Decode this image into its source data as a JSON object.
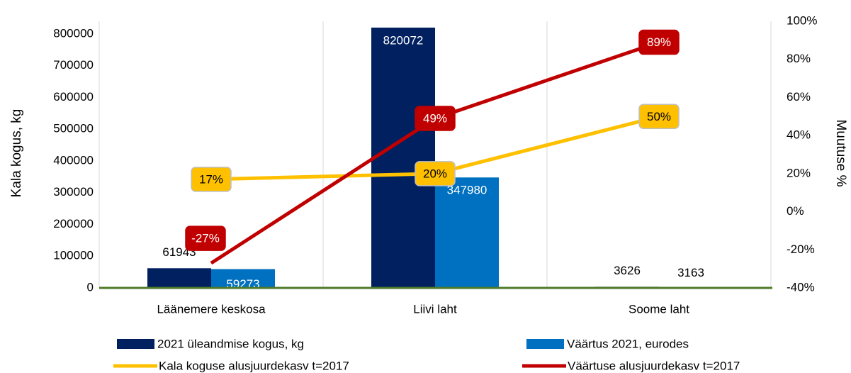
{
  "chart_data": {
    "type": "bar",
    "categories": [
      "Läänemere keskosa",
      "Liivi laht",
      "Soome laht"
    ],
    "y_label": "Kala kogus, kg",
    "y2_label": "Muutuse %",
    "ylim": [
      0,
      840000
    ],
    "yticks": [
      0,
      100000,
      200000,
      300000,
      400000,
      500000,
      600000,
      700000,
      800000
    ],
    "y2lim": [
      -40,
      100
    ],
    "y2ticks": [
      {
        "value": -40,
        "label": "-40%"
      },
      {
        "value": -20,
        "label": "-20%"
      },
      {
        "value": 0,
        "label": "0%"
      },
      {
        "value": 20,
        "label": "20%"
      },
      {
        "value": 40,
        "label": "40%"
      },
      {
        "value": 60,
        "label": "60%"
      },
      {
        "value": 80,
        "label": "80%"
      },
      {
        "value": 100,
        "label": "100%"
      }
    ],
    "grid": true,
    "series": [
      {
        "name": "2021 üleandmise kogus, kg",
        "type": "bar",
        "color": "#002060",
        "values": [
          61943,
          820072,
          3626
        ]
      },
      {
        "name": "Väärtus 2021, eurodes",
        "type": "bar",
        "color": "#0070c0",
        "values": [
          59273,
          347980,
          3163
        ]
      },
      {
        "name": "Kala koguse alusjuurdekasv t=2017",
        "type": "line",
        "axis": "y2",
        "color": "#ffc000",
        "values": [
          17,
          20,
          50
        ],
        "value_labels": [
          "17%",
          "20%",
          "50%"
        ]
      },
      {
        "name": "Väärtuse alusjuurdekasv t=2017",
        "type": "line",
        "axis": "y2",
        "color": "#c00000",
        "values": [
          -27,
          49,
          89
        ],
        "value_labels": [
          "-27%",
          "49%",
          "89%"
        ]
      }
    ]
  }
}
